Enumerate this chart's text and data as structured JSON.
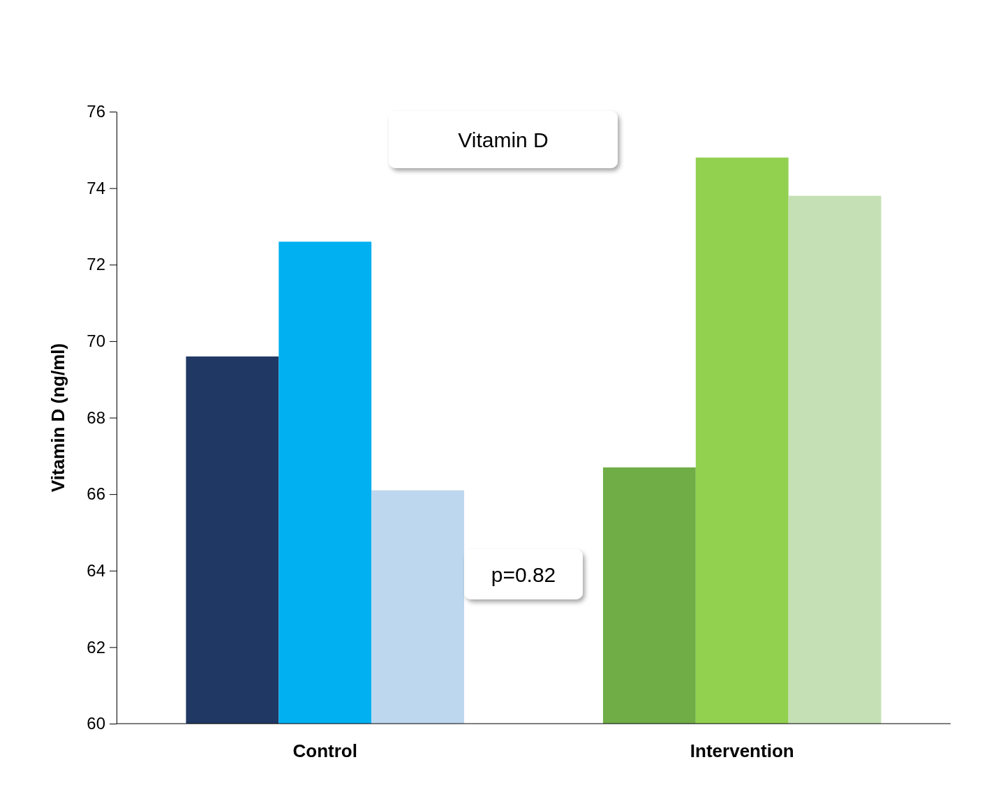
{
  "chart_data": {
    "type": "bar",
    "title": "Vitamin D",
    "ylabel": "Vitamin D (ng/ml)",
    "categories": [
      "Control",
      "Intervention"
    ],
    "series": [
      {
        "colors": [
          "#203864",
          "#70ad47"
        ],
        "values": [
          69.6,
          66.7
        ]
      },
      {
        "colors": [
          "#00b0f0",
          "#92d050"
        ],
        "values": [
          72.6,
          74.8
        ]
      },
      {
        "colors": [
          "#bdd7ee",
          "#c5e0b4"
        ],
        "values": [
          66.1,
          73.8
        ]
      }
    ],
    "ylim": [
      60,
      76
    ],
    "yticks": [
      60,
      62,
      64,
      66,
      68,
      70,
      72,
      74,
      76
    ],
    "grid": false,
    "legend": false,
    "annotations": [
      "p=0.82"
    ]
  }
}
